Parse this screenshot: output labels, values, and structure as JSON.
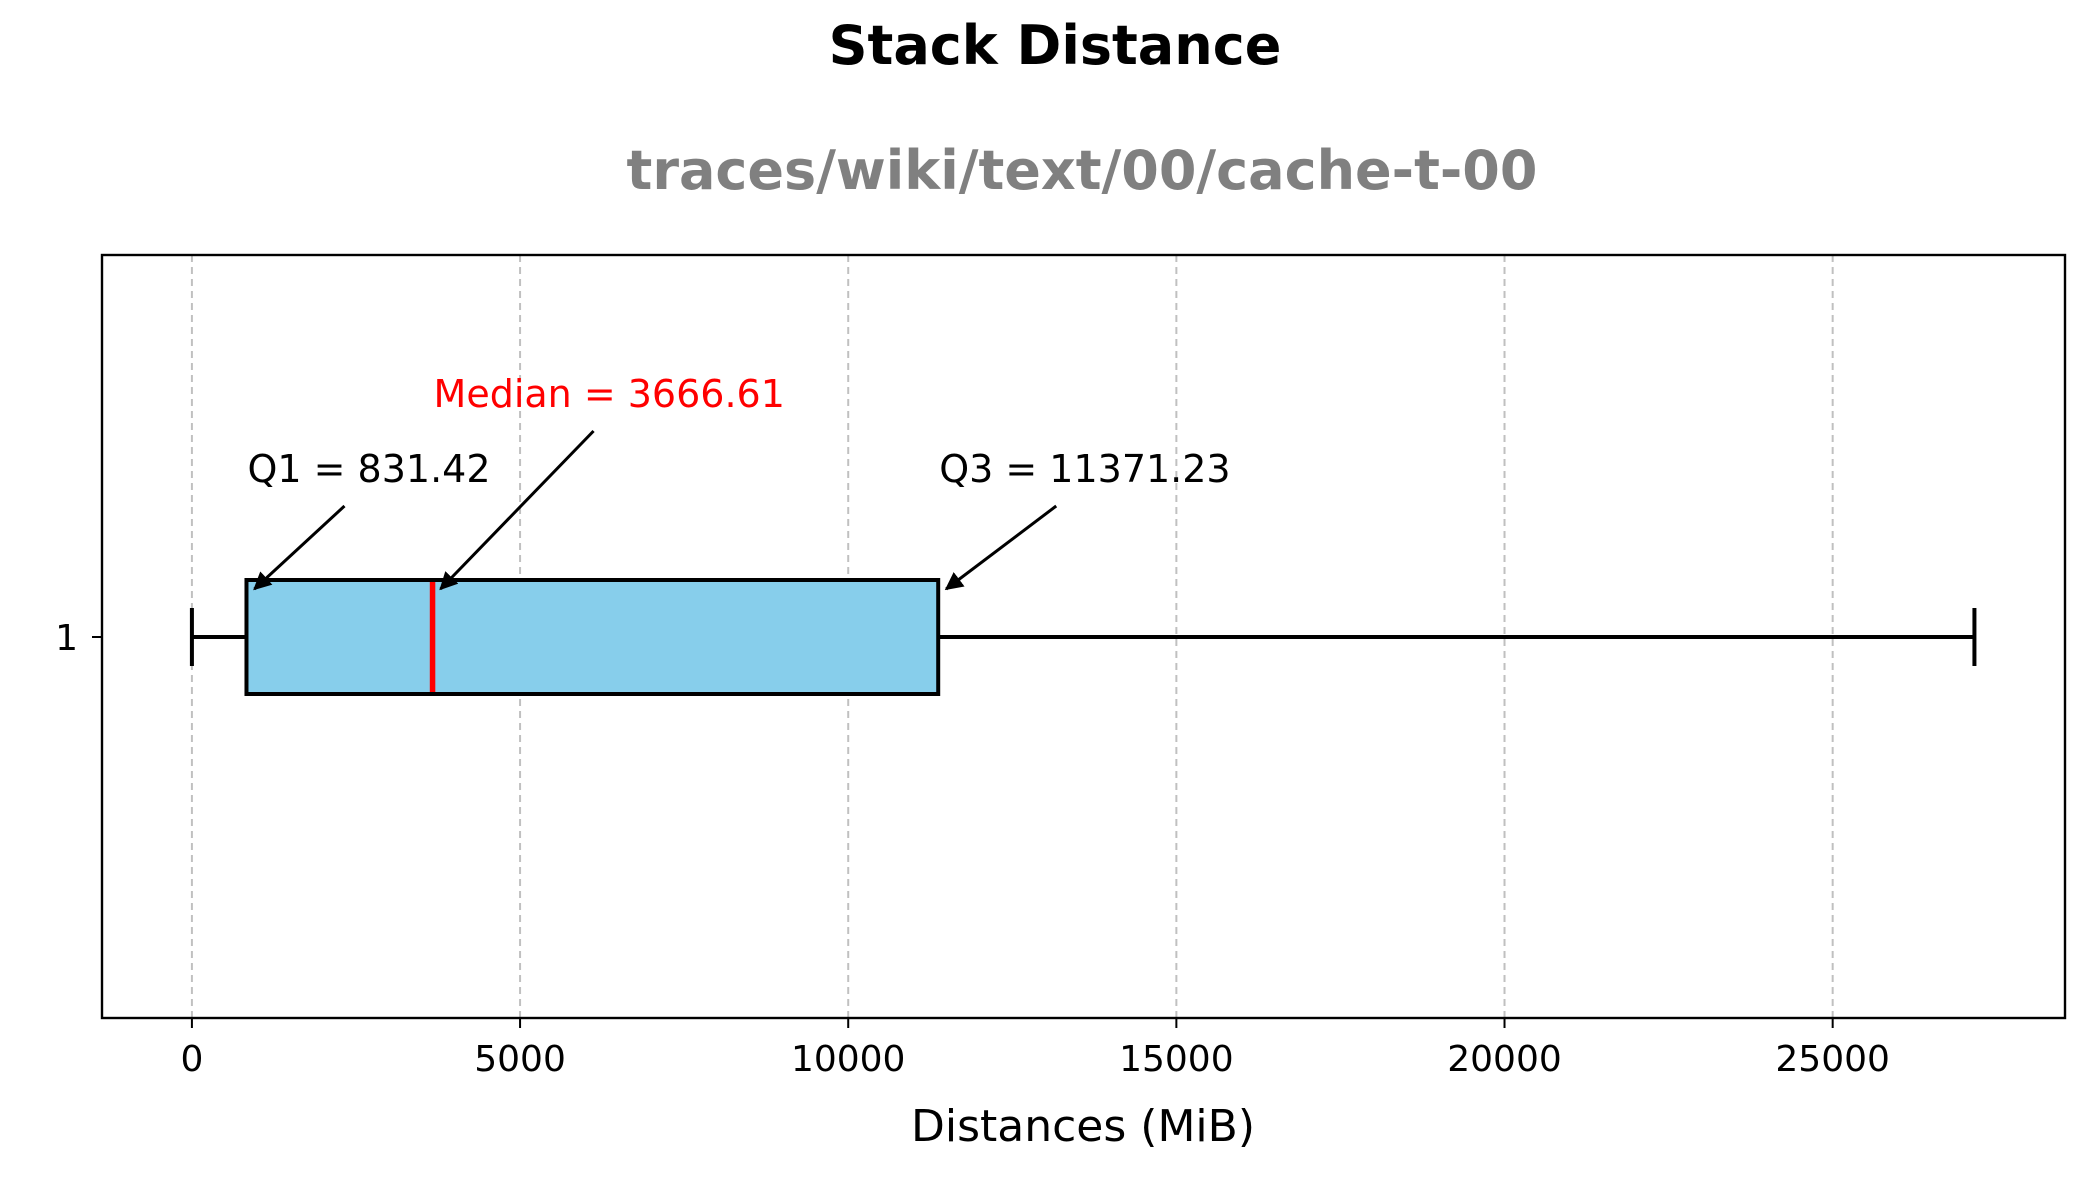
{
  "chart_data": {
    "type": "boxplot",
    "orientation": "horizontal",
    "title": "Stack Distance",
    "subtitle": "traces/wiki/text/00/cache-t-00",
    "xlabel": "Distances (MiB)",
    "ylabel": "",
    "xlim": [
      -1370,
      28540
    ],
    "xticks": [
      0,
      5000,
      10000,
      15000,
      20000,
      25000
    ],
    "y_categories": [
      "1"
    ],
    "grid": {
      "x": true,
      "y": false,
      "style": "dashed"
    },
    "box": {
      "category": "1",
      "whisker_low": 0,
      "q1": 831.42,
      "median": 3666.61,
      "q3": 11371.23,
      "whisker_high": 27160
    },
    "annotations": [
      {
        "key": "q1",
        "text": "Q1 = 831.42",
        "color": "#000000"
      },
      {
        "key": "median",
        "text": "Median = 3666.61",
        "color": "#ff0000"
      },
      {
        "key": "q3",
        "text": "Q3 = 11371.23",
        "color": "#000000"
      }
    ],
    "colors": {
      "box_fill": "#87ceeb",
      "box_edge": "#000000",
      "median_line": "#ff0000",
      "grid": "#c0c0c0"
    }
  }
}
